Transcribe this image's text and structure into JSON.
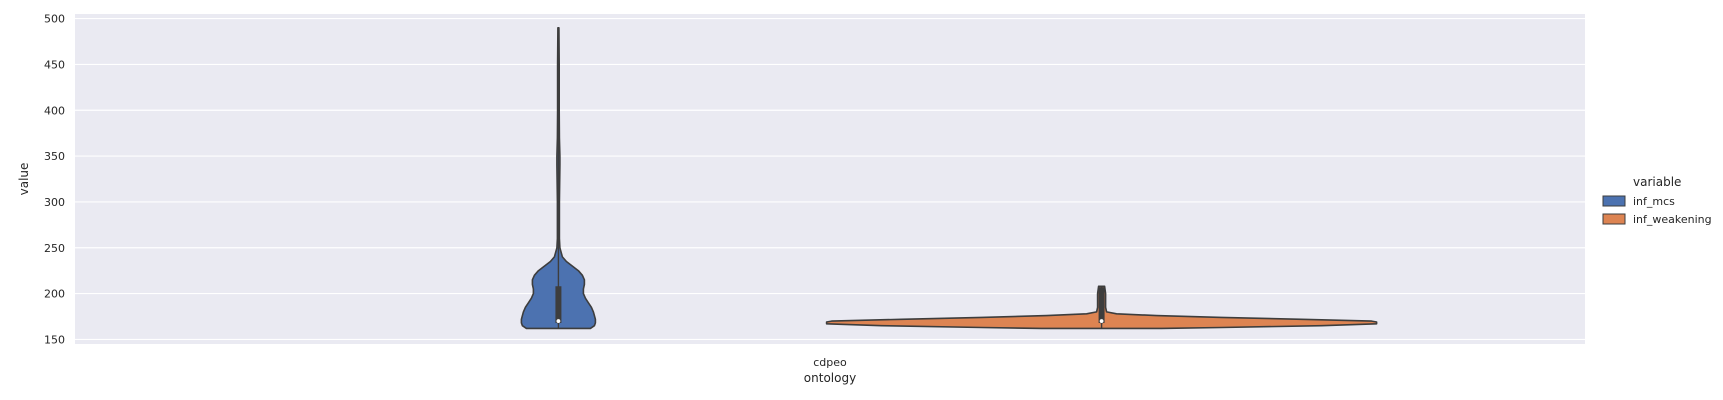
{
  "chart_data": {
    "type": "violin",
    "xlabel": "ontology",
    "ylabel": "value",
    "categories": [
      "cdpeo"
    ],
    "ylim": [
      145,
      505
    ],
    "yticks": [
      150,
      200,
      250,
      300,
      350,
      400,
      450,
      500
    ],
    "grid": true,
    "legend": {
      "title": "variable",
      "position": "right"
    },
    "series": [
      {
        "name": "inf_mcs",
        "color": "#4c72b0",
        "min": 162,
        "max": 490,
        "median": 170,
        "q1": 168,
        "q3": 208,
        "density": [
          [
            162,
            32
          ],
          [
            165,
            36
          ],
          [
            168,
            37
          ],
          [
            172,
            37
          ],
          [
            176,
            36
          ],
          [
            180,
            35
          ],
          [
            185,
            33
          ],
          [
            190,
            30
          ],
          [
            195,
            27
          ],
          [
            200,
            25
          ],
          [
            205,
            25
          ],
          [
            210,
            26
          ],
          [
            215,
            26
          ],
          [
            220,
            24
          ],
          [
            225,
            20
          ],
          [
            230,
            14
          ],
          [
            235,
            8
          ],
          [
            240,
            4
          ],
          [
            250,
            1.5
          ],
          [
            260,
            1
          ],
          [
            300,
            1
          ],
          [
            340,
            1.5
          ],
          [
            350,
            1.5
          ],
          [
            370,
            1
          ],
          [
            400,
            0.8
          ],
          [
            450,
            0.8
          ],
          [
            490,
            0.5
          ]
        ]
      },
      {
        "name": "inf_weakening",
        "color": "#dd8452",
        "min": 162,
        "max": 208,
        "median": 170,
        "q1": 168,
        "q3": 207,
        "density": [
          [
            162,
            60
          ],
          [
            163,
            120
          ],
          [
            165,
            220
          ],
          [
            167,
            275
          ],
          [
            169,
            275
          ],
          [
            170,
            270
          ],
          [
            172,
            200
          ],
          [
            174,
            120
          ],
          [
            176,
            55
          ],
          [
            178,
            15
          ],
          [
            180,
            5
          ],
          [
            185,
            4
          ],
          [
            190,
            4
          ],
          [
            200,
            4
          ],
          [
            208,
            3
          ]
        ]
      }
    ]
  }
}
